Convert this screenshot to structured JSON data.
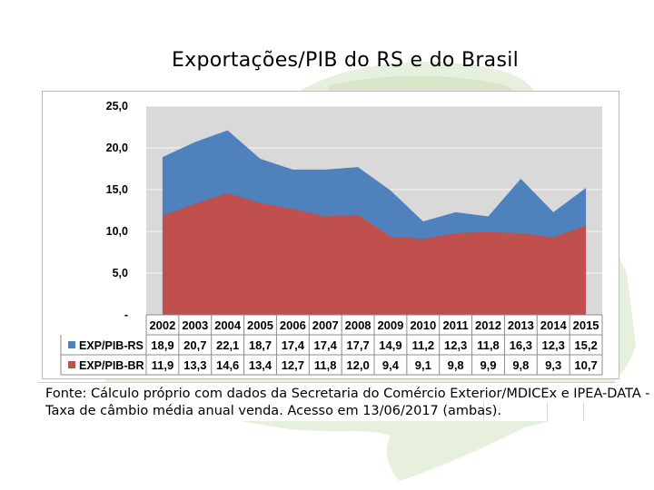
{
  "title": "Exportações/PIB do RS e do Brasil",
  "source_line_1": "Fonte: Cálculo próprio com dados da Secretaria do Comércio Exterior/MDICEx e IPEA-DATA -",
  "source_line_2": "Taxa de câmbio média anual venda. Acesso em 13/06/2017 (ambas).",
  "colors": {
    "rs": "#4f81bd",
    "br": "#c0504d",
    "plot_bg": "#d9d9d9",
    "map": "#dbe7cf"
  },
  "chart_data": {
    "type": "area",
    "title": "",
    "xlabel": "",
    "ylabel": "",
    "categories": [
      "2002",
      "2003",
      "2004",
      "2005",
      "2006",
      "2007",
      "2008",
      "2009",
      "2010",
      "2011",
      "2012",
      "2013",
      "2014",
      "2015"
    ],
    "series": [
      {
        "name": "EXP/PIB-RS",
        "values": [
          18.9,
          20.7,
          22.1,
          18.7,
          17.4,
          17.4,
          17.7,
          14.9,
          11.2,
          12.3,
          11.8,
          16.3,
          12.3,
          15.2
        ]
      },
      {
        "name": "EXP/PIB-BR",
        "values": [
          11.9,
          13.3,
          14.6,
          13.4,
          12.7,
          11.8,
          12.0,
          9.4,
          9.1,
          9.8,
          9.9,
          9.8,
          9.3,
          10.7
        ]
      }
    ],
    "series_labels": [
      [
        "18,9",
        "20,7",
        "22,1",
        "18,7",
        "17,4",
        "17,4",
        "17,7",
        "14,9",
        "11,2",
        "12,3",
        "11,8",
        "16,3",
        "12,3",
        "15,2"
      ],
      [
        "11,9",
        "13,3",
        "14,6",
        "13,4",
        "12,7",
        "11,8",
        "12,0",
        "9,4",
        "9,1",
        "9,8",
        "9,9",
        "9,8",
        "9,3",
        "10,7"
      ]
    ],
    "ylim": [
      0,
      25
    ],
    "yticks": [
      0,
      5,
      10,
      15,
      20,
      25
    ],
    "ytick_labels": [
      "-",
      "5,0",
      "10,0",
      "15,0",
      "20,0",
      "25,0"
    ],
    "grid": true,
    "legend": "data-table"
  }
}
